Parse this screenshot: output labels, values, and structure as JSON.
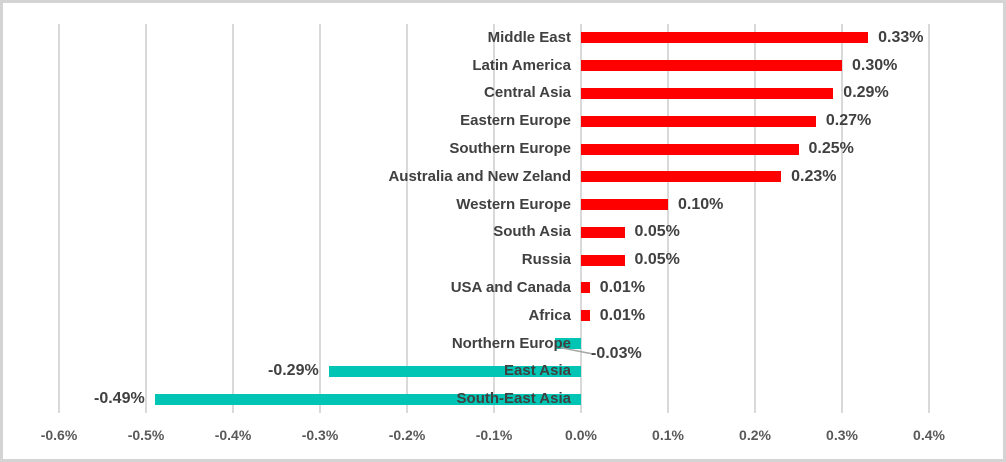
{
  "chart_data": {
    "type": "bar",
    "orientation": "horizontal",
    "title": "",
    "categories": [
      "Middle East",
      "Latin America",
      "Central Asia",
      "Eastern Europe",
      "Southern Europe",
      "Australia and New Zeland",
      "Western Europe",
      "South Asia",
      "Russia",
      "USA and Canada",
      "Africa",
      "Northern Europe",
      "East Asia",
      "South-East Asia"
    ],
    "values": [
      0.33,
      0.3,
      0.29,
      0.27,
      0.25,
      0.23,
      0.1,
      0.05,
      0.05,
      0.01,
      0.01,
      -0.03,
      -0.29,
      -0.49
    ],
    "value_labels": [
      "0.33%",
      "0.30%",
      "0.29%",
      "0.27%",
      "0.25%",
      "0.23%",
      "0.10%",
      "0.05%",
      "0.05%",
      "0.01%",
      "0.01%",
      "-0.03%",
      "-0.29%",
      "-0.49%"
    ],
    "x_ticks": [
      {
        "label": "-0.6%",
        "value": -0.6
      },
      {
        "label": "-0.5%",
        "value": -0.5
      },
      {
        "label": "-0.4%",
        "value": -0.4
      },
      {
        "label": "-0.3%",
        "value": -0.3
      },
      {
        "label": "-0.2%",
        "value": -0.2
      },
      {
        "label": "-0.1%",
        "value": -0.1
      },
      {
        "label": "0.0%",
        "value": 0.0
      },
      {
        "label": "0.1%",
        "value": 0.1
      },
      {
        "label": "0.2%",
        "value": 0.2
      },
      {
        "label": "0.3%",
        "value": 0.3
      },
      {
        "label": "0.4%",
        "value": 0.4
      }
    ],
    "xlim": [
      -0.6,
      0.4
    ],
    "grid": true,
    "legend": "none",
    "colors": {
      "positive_bar": "#fe0000",
      "negative_bar": "#00c5b4",
      "gridline": "#d9d9d9",
      "category_text": "#404040",
      "value_text": "#404040",
      "axis_text": "#595959",
      "frame_border": "#d4d4d4",
      "leader_line": "#a6a6a6"
    }
  }
}
